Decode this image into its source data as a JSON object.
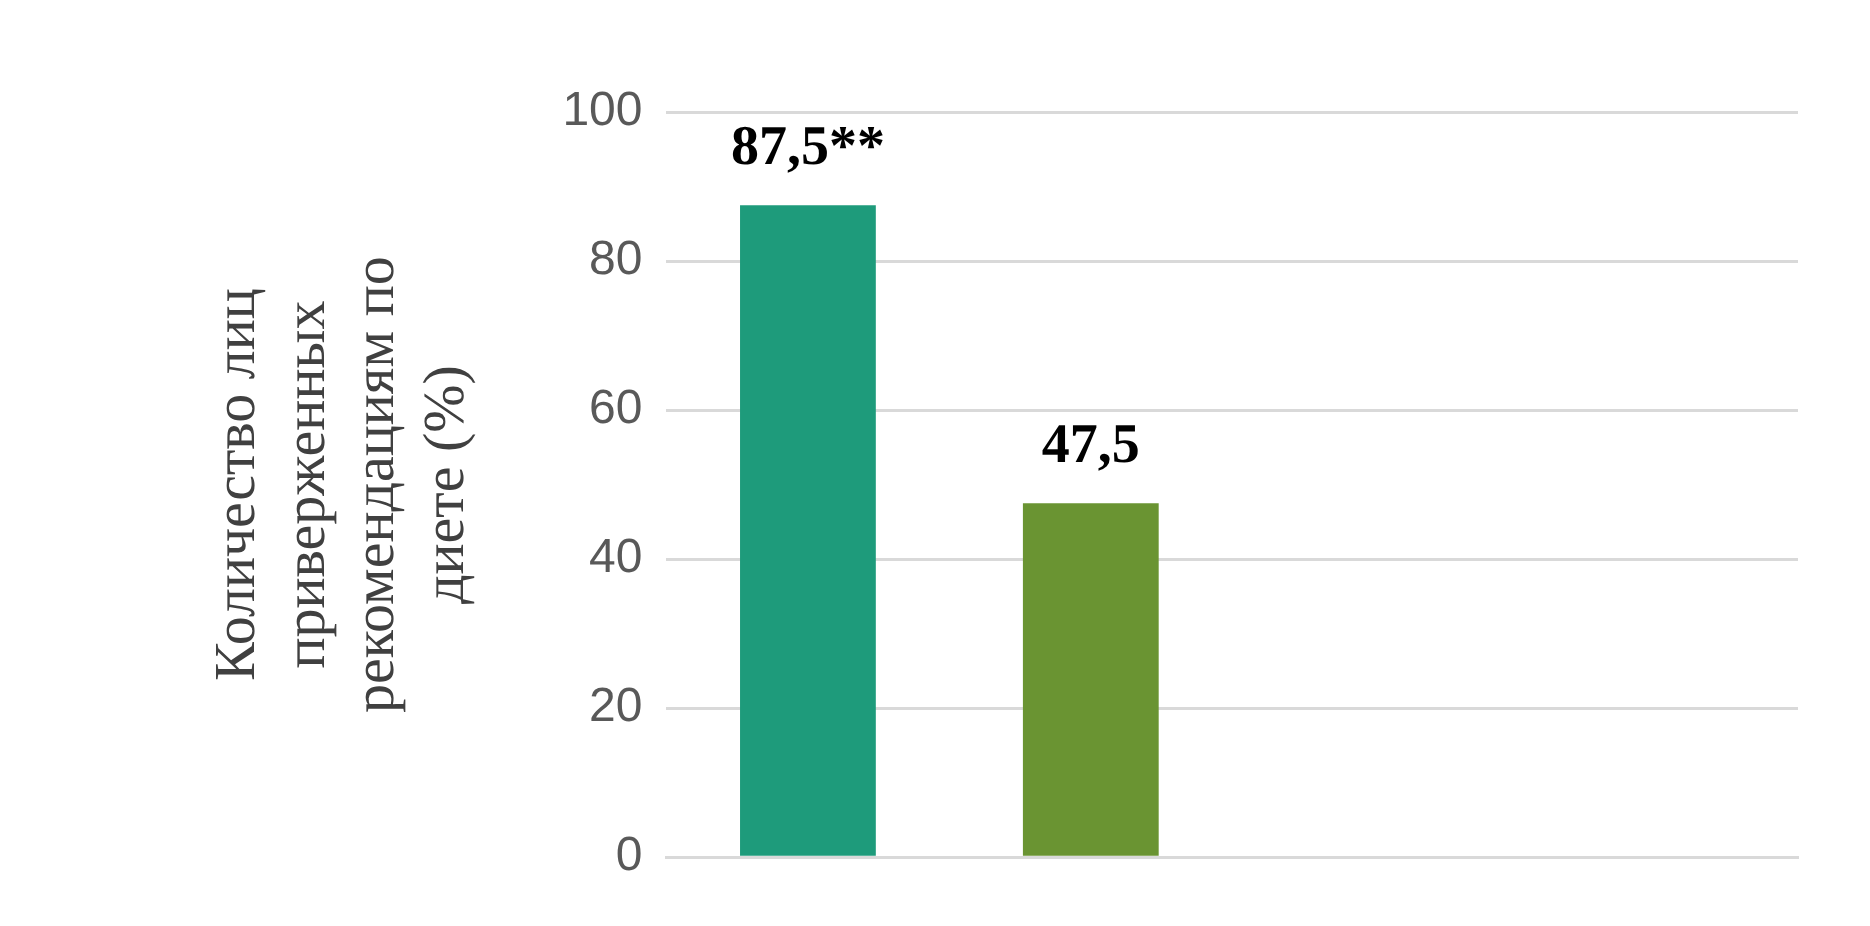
{
  "chart_data": {
    "type": "bar",
    "ylabel": "Количество лиц\nприверженных\nрекомендациям по\nдиете (%)",
    "categories": [
      null,
      null,
      null,
      null
    ],
    "values": [
      87.5,
      47.5,
      null,
      null
    ],
    "colors": [
      "#1e9b7b",
      "#6a9432",
      null,
      null
    ],
    "value_labels": [
      "87,5**",
      "47,5",
      null,
      null
    ],
    "ylim": [
      0,
      100
    ],
    "yticks": [
      0,
      20,
      40,
      60,
      80,
      100
    ],
    "grid": "y",
    "legend": false
  }
}
